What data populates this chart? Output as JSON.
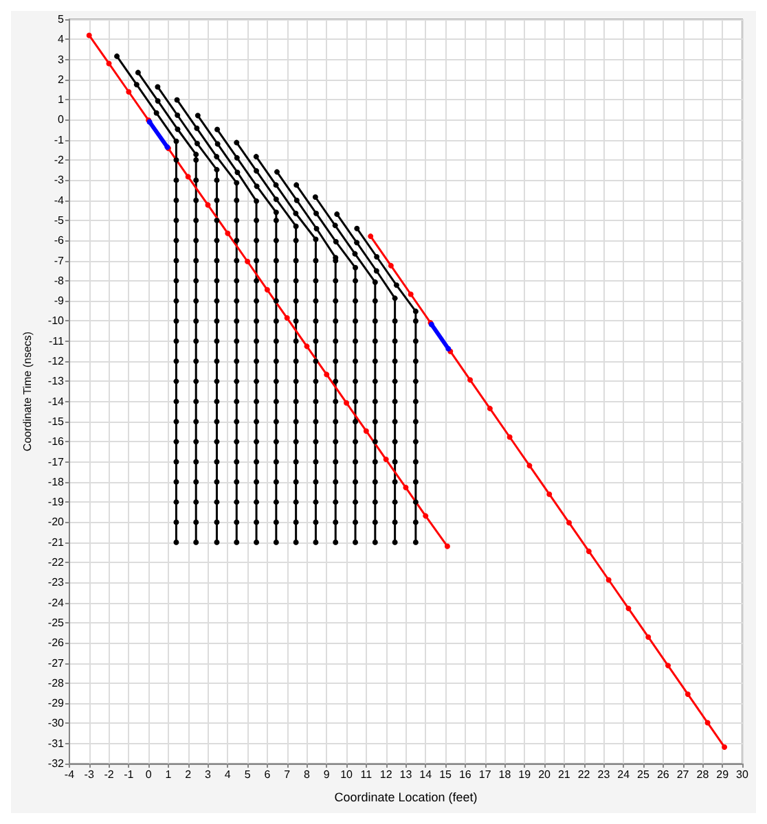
{
  "chart_data": {
    "type": "line",
    "xlabel": "Coordinate Location (feet)",
    "ylabel": "Coordinate Time (nsecs)",
    "xlim": [
      -4,
      30
    ],
    "ylim": [
      -32,
      5
    ],
    "xticks": [
      -4,
      -3,
      -2,
      -1,
      0,
      1,
      2,
      3,
      4,
      5,
      6,
      7,
      8,
      9,
      10,
      11,
      12,
      13,
      14,
      15,
      16,
      17,
      18,
      19,
      20,
      21,
      22,
      23,
      24,
      25,
      26,
      27,
      28,
      29,
      30
    ],
    "yticks": [
      -32,
      -31,
      -30,
      -29,
      -28,
      -27,
      -26,
      -25,
      -24,
      -23,
      -22,
      -21,
      -20,
      -19,
      -18,
      -17,
      -16,
      -15,
      -14,
      -13,
      -12,
      -11,
      -10,
      -9,
      -8,
      -7,
      -6,
      -5,
      -4,
      -3,
      -2,
      -1,
      0,
      1,
      2,
      3,
      4,
      5
    ],
    "grid": true,
    "marker": "circle",
    "line_style": "solid",
    "series": [
      {
        "color": "#000000",
        "x": [
          -1.6,
          -0.6,
          0.4,
          1.4,
          1.4,
          1.4,
          1.4,
          1.4,
          1.4,
          1.4,
          1.4,
          1.4,
          1.4,
          1.4,
          1.4,
          1.4,
          1.4,
          1.4,
          1.4,
          1.4,
          1.4,
          1.4,
          1.4,
          1.4
        ],
        "values": [
          3.16,
          1.75,
          0.34,
          -1.07,
          -2,
          -3,
          -4,
          -5,
          -6,
          -7,
          -8,
          -9,
          -10,
          -11,
          -12,
          -13,
          -14,
          -15,
          -16,
          -17,
          -18,
          -19,
          -20,
          -21
        ]
      },
      {
        "color": "#000000",
        "x": [
          -0.53,
          0.47,
          1.47,
          2.4,
          2.4,
          2.4,
          2.4,
          2.4,
          2.4,
          2.4,
          2.4,
          2.4,
          2.4,
          2.4,
          2.4,
          2.4,
          2.4,
          2.4,
          2.4,
          2.4,
          2.4,
          2.4,
          2.4,
          2.4
        ],
        "values": [
          2.35,
          0.94,
          -0.47,
          -1.72,
          -2,
          -3,
          -4,
          -5,
          -6,
          -7,
          -8,
          -9,
          -10,
          -11,
          -12,
          -13,
          -14,
          -15,
          -16,
          -17,
          -18,
          -19,
          -20,
          -21
        ]
      },
      {
        "color": "#000000",
        "x": [
          0.46,
          1.46,
          2.46,
          3.45,
          3.45,
          3.45,
          3.45,
          3.45,
          3.45,
          3.45,
          3.45,
          3.45,
          3.45,
          3.45,
          3.45,
          3.45,
          3.45,
          3.45,
          3.45,
          3.45,
          3.45,
          3.45,
          3.45
        ],
        "values": [
          1.64,
          0.23,
          -1.18,
          -2.48,
          -3,
          -4,
          -5,
          -6,
          -7,
          -8,
          -9,
          -10,
          -11,
          -12,
          -13,
          -14,
          -15,
          -16,
          -17,
          -18,
          -19,
          -20,
          -21
        ]
      },
      {
        "color": "#000000",
        "x": [
          1.44,
          2.44,
          3.44,
          4.45,
          4.45,
          4.45,
          4.45,
          4.45,
          4.45,
          4.45,
          4.45,
          4.45,
          4.45,
          4.45,
          4.45,
          4.45,
          4.45,
          4.45,
          4.45,
          4.45,
          4.45,
          4.45
        ],
        "values": [
          0.99,
          -0.42,
          -1.83,
          -3.13,
          -4,
          -5,
          -6,
          -7,
          -8,
          -9,
          -10,
          -11,
          -12,
          -13,
          -14,
          -15,
          -16,
          -17,
          -18,
          -19,
          -20,
          -21
        ]
      },
      {
        "color": "#000000",
        "x": [
          2.49,
          3.49,
          4.49,
          5.45,
          5.45,
          5.45,
          5.45,
          5.45,
          5.45,
          5.45,
          5.45,
          5.45,
          5.45,
          5.45,
          5.45,
          5.45,
          5.45,
          5.45,
          5.45,
          5.45,
          5.45
        ],
        "values": [
          0.21,
          -1.2,
          -2.61,
          -4.04,
          -5,
          -6,
          -7,
          -8,
          -9,
          -10,
          -11,
          -12,
          -13,
          -14,
          -15,
          -16,
          -17,
          -18,
          -19,
          -20,
          -21
        ]
      },
      {
        "color": "#000000",
        "x": [
          3.47,
          4.47,
          5.47,
          6.45,
          6.45,
          6.45,
          6.45,
          6.45,
          6.45,
          6.45,
          6.45,
          6.45,
          6.45,
          6.45,
          6.45,
          6.45,
          6.45,
          6.45,
          6.45,
          6.45,
          6.45
        ],
        "values": [
          -0.48,
          -1.89,
          -3.3,
          -4.6,
          -5,
          -6,
          -7,
          -8,
          -9,
          -10,
          -11,
          -12,
          -13,
          -14,
          -15,
          -16,
          -17,
          -18,
          -19,
          -20,
          -21
        ]
      },
      {
        "color": "#000000",
        "x": [
          4.45,
          5.45,
          6.45,
          7.45,
          7.45,
          7.45,
          7.45,
          7.45,
          7.45,
          7.45,
          7.45,
          7.45,
          7.45,
          7.45,
          7.45,
          7.45,
          7.45,
          7.45,
          7.45,
          7.45
        ],
        "values": [
          -1.13,
          -2.54,
          -3.95,
          -5.29,
          -6,
          -7,
          -8,
          -9,
          -10,
          -11,
          -12,
          -13,
          -14,
          -15,
          -16,
          -17,
          -18,
          -19,
          -20,
          -21
        ]
      },
      {
        "color": "#000000",
        "x": [
          5.44,
          6.44,
          7.44,
          8.45,
          8.45,
          8.45,
          8.45,
          8.45,
          8.45,
          8.45,
          8.45,
          8.45,
          8.45,
          8.45,
          8.45,
          8.45,
          8.45,
          8.45,
          8.45
        ],
        "values": [
          -1.83,
          -3.24,
          -4.65,
          -5.94,
          -7,
          -8,
          -9,
          -10,
          -11,
          -12,
          -13,
          -14,
          -15,
          -16,
          -17,
          -18,
          -19,
          -20,
          -21
        ]
      },
      {
        "color": "#000000",
        "x": [
          6.49,
          7.49,
          8.49,
          9.45,
          9.45,
          9.45,
          9.45,
          9.45,
          9.45,
          9.45,
          9.45,
          9.45,
          9.45,
          9.45,
          9.45,
          9.45,
          9.45,
          9.45,
          9.45
        ],
        "values": [
          -2.59,
          -4.0,
          -5.41,
          -6.85,
          -7,
          -8,
          -9,
          -10,
          -11,
          -12,
          -13,
          -14,
          -15,
          -16,
          -17,
          -18,
          -19,
          -20,
          -21
        ]
      },
      {
        "color": "#000000",
        "x": [
          7.47,
          8.47,
          9.47,
          10.45,
          10.45,
          10.45,
          10.45,
          10.45,
          10.45,
          10.45,
          10.45,
          10.45,
          10.45,
          10.45,
          10.45,
          10.45,
          10.45,
          10.45
        ],
        "values": [
          -3.24,
          -4.65,
          -6.06,
          -7.35,
          -8,
          -9,
          -10,
          -11,
          -12,
          -13,
          -14,
          -15,
          -16,
          -17,
          -18,
          -19,
          -20,
          -21
        ]
      },
      {
        "color": "#000000",
        "x": [
          8.43,
          9.43,
          10.43,
          11.45,
          11.45,
          11.45,
          11.45,
          11.45,
          11.45,
          11.45,
          11.45,
          11.45,
          11.45,
          11.45,
          11.45,
          11.45,
          11.45
        ],
        "values": [
          -3.84,
          -5.25,
          -6.66,
          -8.07,
          -9,
          -10,
          -11,
          -12,
          -13,
          -14,
          -15,
          -16,
          -17,
          -18,
          -19,
          -20,
          -21
        ]
      },
      {
        "color": "#000000",
        "x": [
          9.52,
          10.52,
          11.52,
          12.45,
          12.45,
          12.45,
          12.45,
          12.45,
          12.45,
          12.45,
          12.45,
          12.45,
          12.45,
          12.45,
          12.45,
          12.45
        ],
        "values": [
          -4.69,
          -6.1,
          -7.51,
          -8.87,
          -10,
          -11,
          -12,
          -13,
          -14,
          -15,
          -16,
          -17,
          -18,
          -19,
          -20,
          -21
        ]
      },
      {
        "color": "#000000",
        "x": [
          10.53,
          11.53,
          12.53,
          13.5,
          13.5,
          13.5,
          13.5,
          13.5,
          13.5,
          13.5,
          13.5,
          13.5,
          13.5,
          13.5,
          13.5,
          13.5
        ],
        "values": [
          -5.4,
          -6.81,
          -8.22,
          -9.52,
          -10,
          -11,
          -12,
          -13,
          -14,
          -15,
          -16,
          -17,
          -18,
          -19,
          -20,
          -21
        ]
      },
      {
        "color": "#ff0000",
        "x": [
          -3,
          -2,
          -1,
          0,
          1,
          2,
          3,
          4,
          5,
          6,
          7,
          8,
          9,
          10,
          11,
          12,
          13,
          14,
          15.1
        ],
        "values": [
          4.2,
          2.8,
          1.39,
          -0.02,
          -1.42,
          -2.83,
          -4.23,
          -5.64,
          -7.04,
          -8.45,
          -9.85,
          -11.26,
          -12.66,
          -14.07,
          -15.47,
          -16.88,
          -18.28,
          -19.69,
          -21.2
        ]
      },
      {
        "color": "#ff0000",
        "x": [
          11.22,
          12.25,
          13.25,
          14.25,
          15.25,
          16.25,
          17.25,
          18.25,
          19.25,
          20.25,
          21.25,
          22.25,
          23.25,
          24.25,
          25.25,
          26.25,
          27.25,
          28.25,
          29.1
        ],
        "values": [
          -5.79,
          -7.25,
          -8.67,
          -10.09,
          -11.51,
          -12.93,
          -14.35,
          -15.77,
          -17.19,
          -18.61,
          -20.03,
          -21.45,
          -22.87,
          -24.29,
          -25.71,
          -27.13,
          -28.55,
          -29.97,
          -31.18
        ]
      },
      {
        "color": "#0000ff",
        "x": [
          0.05,
          0.95
        ],
        "values": [
          -0.1,
          -1.36
        ]
      },
      {
        "color": "#0000ff",
        "x": [
          14.3,
          15.15
        ],
        "values": [
          -10.17,
          -11.38
        ]
      }
    ]
  }
}
